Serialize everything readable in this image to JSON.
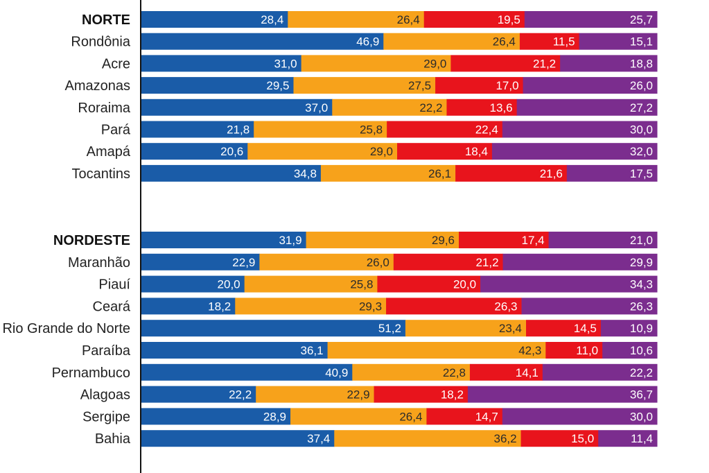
{
  "chart_data": [
    {
      "type": "bar",
      "orientation": "horizontal",
      "stacked": true,
      "normalized_to": 100,
      "categories": [
        "NORTE",
        "Rondônia",
        "Acre",
        "Amazonas",
        "Roraima",
        "Pará",
        "Amapá",
        "Tocantins"
      ],
      "bold_categories": [
        "NORTE"
      ],
      "series": [
        {
          "color": "#1a5ca8",
          "values": [
            28.4,
            46.9,
            31.0,
            29.5,
            37.0,
            21.8,
            20.6,
            34.8
          ]
        },
        {
          "color": "#f7a21b",
          "values": [
            26.4,
            26.4,
            29.0,
            27.5,
            22.2,
            25.8,
            29.0,
            26.1
          ]
        },
        {
          "color": "#e8141c",
          "values": [
            19.5,
            11.5,
            21.2,
            17.0,
            13.6,
            22.4,
            18.4,
            21.6
          ]
        },
        {
          "color": "#7b2d8e",
          "values": [
            25.7,
            15.1,
            18.8,
            26.0,
            27.2,
            30.0,
            32.0,
            17.5
          ]
        }
      ],
      "value_labels": [
        [
          "28,4",
          "46,9",
          "31,0",
          "29,5",
          "37,0",
          "21,8",
          "20,6",
          "34,8"
        ],
        [
          "26,4",
          "26,4",
          "29,0",
          "27,5",
          "22,2",
          "25,8",
          "29,0",
          "26,1"
        ],
        [
          "19,5",
          "11,5",
          "21,2",
          "17,0",
          "13,6",
          "22,4",
          "18,4",
          "21,6"
        ],
        [
          "25,7",
          "15,1",
          "18,8",
          "26,0",
          "27,2",
          "30,0",
          "32,0",
          "17,5"
        ]
      ]
    },
    {
      "type": "bar",
      "orientation": "horizontal",
      "stacked": true,
      "normalized_to": 100,
      "categories": [
        "NORDESTE",
        "Maranhão",
        "Piauí",
        "Ceará",
        "Rio Grande do Norte",
        "Paraíba",
        "Pernambuco",
        "Alagoas",
        "Sergipe",
        "Bahia"
      ],
      "bold_categories": [
        "NORDESTE"
      ],
      "series": [
        {
          "color": "#1a5ca8",
          "values": [
            31.9,
            22.9,
            20.0,
            18.2,
            51.2,
            36.1,
            40.9,
            22.2,
            28.9,
            37.4
          ]
        },
        {
          "color": "#f7a21b",
          "values": [
            29.6,
            26.0,
            25.8,
            29.3,
            23.4,
            42.3,
            22.8,
            22.9,
            26.4,
            36.2
          ]
        },
        {
          "color": "#e8141c",
          "values": [
            17.4,
            21.2,
            20.0,
            26.3,
            14.5,
            11.0,
            14.1,
            18.2,
            14.7,
            15.0
          ]
        },
        {
          "color": "#7b2d8e",
          "values": [
            21.0,
            29.9,
            34.3,
            26.3,
            10.9,
            10.6,
            22.2,
            36.7,
            30.0,
            11.4
          ]
        }
      ],
      "value_labels": [
        [
          "31,9",
          "22,9",
          "20,0",
          "18,2",
          "51,2",
          "36,1",
          "40,9",
          "22,2",
          "28,9",
          "37,4"
        ],
        [
          "29,6",
          "26,0",
          "25,8",
          "29,3",
          "23,4",
          "42,3",
          "22,8",
          "22,9",
          "26,4",
          "36,2"
        ],
        [
          "17,4",
          "21,2",
          "20,0",
          "26,3",
          "14,5",
          "11,0",
          "14,1",
          "18,2",
          "14,7",
          "15,0"
        ],
        [
          "21,0",
          "29,9",
          "34,3",
          "26,3",
          "10,9",
          "10,6",
          "22,2",
          "36,7",
          "30,0",
          "11,4"
        ]
      ]
    }
  ],
  "colors": {
    "label_on_orange": "#2b2b2b",
    "label_on_other": "#ffffff",
    "axis_line": "#111111"
  }
}
